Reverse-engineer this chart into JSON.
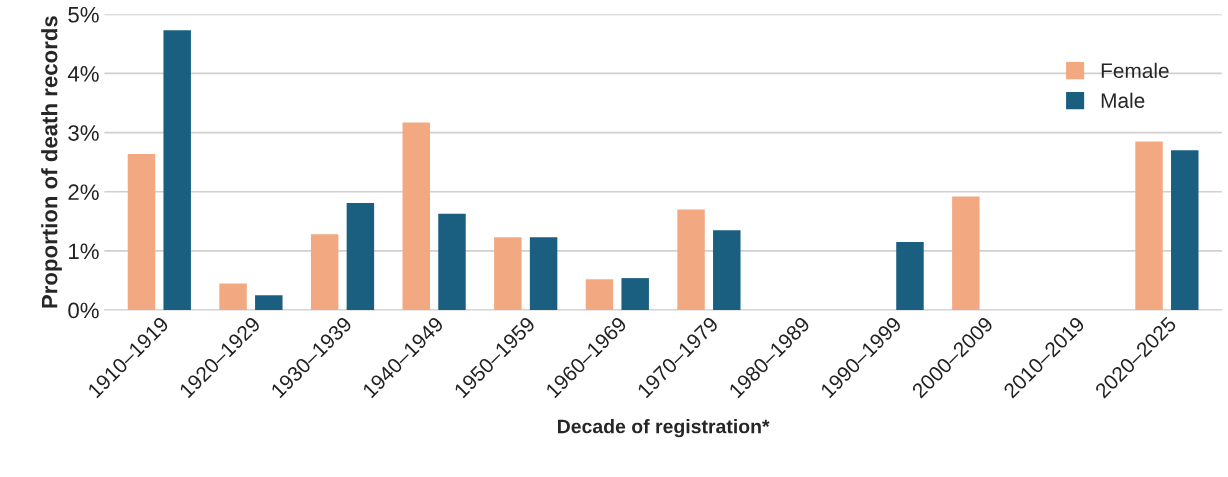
{
  "chart_data": {
    "type": "bar",
    "xlabel": "Decade of registration*",
    "ylabel": "Proportion of death records",
    "categories": [
      "1910–1919",
      "1920–1929",
      "1930–1939",
      "1940–1949",
      "1950–1959",
      "1960–1969",
      "1970–1979",
      "1980–1989",
      "1990–1999",
      "2000–2009",
      "2010–2019",
      "2020–2025"
    ],
    "series": [
      {
        "name": "Female",
        "color": "#f2a982",
        "values": [
          2.64,
          0.45,
          1.28,
          3.17,
          1.23,
          0.52,
          1.7,
          null,
          null,
          1.92,
          null,
          2.85
        ]
      },
      {
        "name": "Male",
        "color": "#1a5e80",
        "values": [
          4.73,
          0.25,
          1.81,
          1.63,
          1.23,
          0.54,
          1.35,
          null,
          1.15,
          null,
          null,
          2.7
        ]
      }
    ],
    "ylim": [
      0,
      5
    ],
    "yticks": [
      {
        "value": 0,
        "label": "0%"
      },
      {
        "value": 1,
        "label": "1%"
      },
      {
        "value": 2,
        "label": "2%"
      },
      {
        "value": 3,
        "label": "3%"
      },
      {
        "value": 4,
        "label": "4%"
      },
      {
        "value": 5,
        "label": "5%"
      }
    ],
    "grid": "y",
    "legend": "top right"
  }
}
